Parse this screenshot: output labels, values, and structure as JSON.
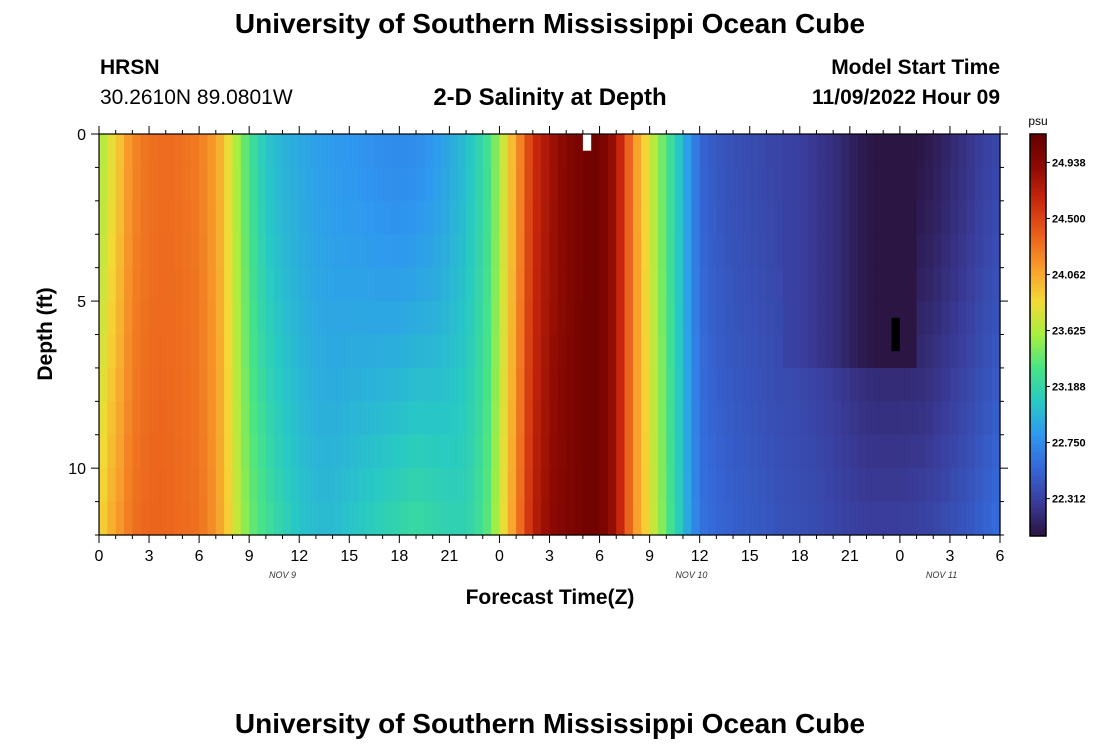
{
  "header": {
    "title": "University of Southern Mississippi Ocean Cube",
    "station": "HRSN",
    "coordinates": "30.2610N  89.0801W",
    "plot_title": "2-D Salinity at Depth",
    "start_label": "Model Start Time",
    "start_value": "11/09/2022 Hour 09"
  },
  "footer": {
    "title": "University of Southern Mississippi Ocean Cube"
  },
  "chart_data": {
    "type": "heatmap",
    "title": "2-D Salinity at Depth",
    "xlabel": "Forecast Time(Z)",
    "ylabel": "Depth (ft)",
    "x_tick_labels": [
      "0",
      "3",
      "6",
      "9",
      "12",
      "15",
      "18",
      "21",
      "0",
      "3",
      "6",
      "9",
      "12",
      "15",
      "18",
      "21",
      "0",
      "3",
      "6"
    ],
    "x_hours_range": [
      0,
      54
    ],
    "date_labels": [
      {
        "label": "NOV 9",
        "hour": 11
      },
      {
        "label": "NOV 10",
        "hour": 35.5
      },
      {
        "label": "NOV 11",
        "hour": 50.5
      }
    ],
    "y_tick_labels": [
      "0",
      "5",
      "10"
    ],
    "y_ticks": [
      0,
      5,
      10
    ],
    "ylim": [
      0,
      12
    ],
    "colorbar": {
      "unit": "psu",
      "labels": [
        "24.938",
        "24.500",
        "24.062",
        "23.625",
        "23.188",
        "22.750",
        "22.312"
      ],
      "range": [
        22.02,
        25.16
      ],
      "colors": [
        "#2a1340",
        "#3a3c9a",
        "#3567d6",
        "#2f97f0",
        "#28c9c4",
        "#47e387",
        "#a6ef3f",
        "#f3d936",
        "#f89d2b",
        "#ea5e1b",
        "#c9290d",
        "#8f0a03",
        "#640000"
      ]
    },
    "salinity_profile": {
      "hours": [
        0,
        0.5,
        1,
        1.5,
        2,
        3,
        4,
        5,
        6,
        7,
        7.5,
        8,
        8.5,
        9,
        10,
        11,
        12,
        13,
        14,
        15,
        16,
        17,
        18,
        19,
        20,
        21,
        22,
        23,
        23.5,
        24,
        24.5,
        25,
        25.5,
        26,
        27,
        28,
        29,
        29.5,
        30,
        30.5,
        31,
        31.5,
        32,
        33,
        34,
        35,
        36,
        37,
        38,
        39,
        40,
        41,
        42,
        43,
        44,
        45,
        46,
        47,
        48,
        49,
        50,
        51,
        52,
        53,
        54
      ],
      "surface": [
        23.55,
        23.75,
        23.85,
        24.05,
        24.2,
        24.3,
        24.32,
        24.3,
        24.25,
        24.1,
        23.95,
        23.7,
        23.5,
        23.3,
        23.05,
        22.95,
        22.9,
        22.85,
        22.82,
        22.8,
        22.78,
        22.75,
        22.73,
        22.75,
        22.8,
        22.9,
        23.0,
        23.2,
        23.35,
        23.6,
        23.85,
        24.1,
        24.35,
        24.6,
        24.8,
        24.95,
        25.05,
        25.1,
        25.05,
        24.95,
        24.8,
        24.5,
        24.2,
        23.75,
        23.35,
        22.95,
        22.55,
        22.45,
        22.4,
        22.38,
        22.35,
        22.32,
        22.3,
        22.25,
        22.2,
        22.12,
        22.05,
        22.03,
        22.03,
        22.03,
        22.08,
        22.15,
        22.22,
        22.3,
        22.35
      ],
      "bottom": [
        23.85,
        24.0,
        24.1,
        24.2,
        24.3,
        24.35,
        24.35,
        24.32,
        24.3,
        24.15,
        24.0,
        23.8,
        23.6,
        23.45,
        23.3,
        23.15,
        23.05,
        23.0,
        23.0,
        23.05,
        23.1,
        23.15,
        23.2,
        23.25,
        23.2,
        23.15,
        23.15,
        23.3,
        23.45,
        23.7,
        23.95,
        24.2,
        24.45,
        24.7,
        24.9,
        25.0,
        25.05,
        25.1,
        25.05,
        24.95,
        24.8,
        24.5,
        24.2,
        23.8,
        23.4,
        23.0,
        22.62,
        22.55,
        22.5,
        22.48,
        22.45,
        22.42,
        22.4,
        22.38,
        22.35,
        22.32,
        22.3,
        22.3,
        22.3,
        22.32,
        22.35,
        22.4,
        22.45,
        22.52,
        22.6
      ],
      "surface_layer_depth": 6.5,
      "low_layer_hours": [
        41,
        49
      ]
    },
    "data_gaps": [
      {
        "color": "#ffffff",
        "hour": 29,
        "depth_from": 0,
        "depth_to": 0.5
      },
      {
        "color": "#000000",
        "hour": 47.5,
        "depth_from": 5.5,
        "depth_to": 6.5
      }
    ]
  }
}
